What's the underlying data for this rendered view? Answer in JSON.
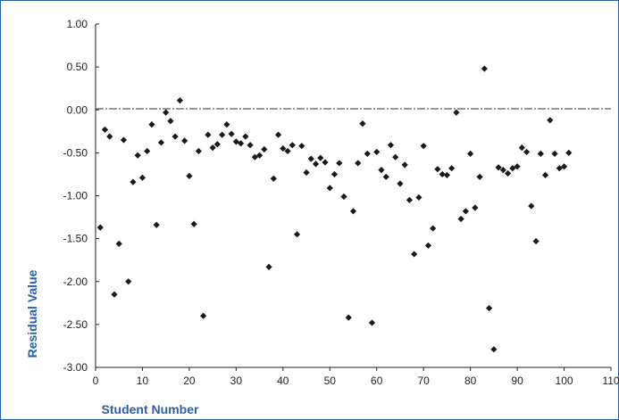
{
  "chart_data": {
    "type": "scatter",
    "title": "",
    "xlabel": "Student Number",
    "ylabel": "Residual Value",
    "xlim": [
      0,
      110
    ],
    "ylim": [
      -3.0,
      1.0
    ],
    "x_ticks": [
      "0",
      "10",
      "20",
      "30",
      "40",
      "50",
      "60",
      "70",
      "80",
      "90",
      "100",
      "110"
    ],
    "y_ticks": [
      "1.00",
      "0.50",
      "0.00",
      "-0.50",
      "-1.00",
      "-1.50",
      "-2.00",
      "-2.50",
      "-3.00"
    ],
    "reference_line_y": 0,
    "grid": false,
    "legend": "none",
    "marker_color": "#1a1a1a",
    "points": [
      [
        1,
        -1.37
      ],
      [
        2,
        -0.23
      ],
      [
        3,
        -0.31
      ],
      [
        4,
        -2.15
      ],
      [
        5,
        -1.56
      ],
      [
        6,
        -0.35
      ],
      [
        7,
        -2.0
      ],
      [
        8,
        -0.84
      ],
      [
        9,
        -0.53
      ],
      [
        10,
        -0.79
      ],
      [
        11,
        -0.48
      ],
      [
        12,
        -0.17
      ],
      [
        13,
        -1.34
      ],
      [
        14,
        -0.38
      ],
      [
        15,
        -0.03
      ],
      [
        16,
        -0.13
      ],
      [
        17,
        -0.31
      ],
      [
        18,
        0.11
      ],
      [
        19,
        -0.36
      ],
      [
        20,
        -0.77
      ],
      [
        21,
        -1.33
      ],
      [
        22,
        -0.48
      ],
      [
        23,
        -2.4
      ],
      [
        24,
        -0.29
      ],
      [
        25,
        -0.44
      ],
      [
        26,
        -0.4
      ],
      [
        27,
        -0.29
      ],
      [
        28,
        -0.17
      ],
      [
        29,
        -0.28
      ],
      [
        30,
        -0.37
      ],
      [
        31,
        -0.39
      ],
      [
        32,
        -0.31
      ],
      [
        33,
        -0.41
      ],
      [
        34,
        -0.55
      ],
      [
        35,
        -0.53
      ],
      [
        36,
        -0.46
      ],
      [
        37,
        -1.83
      ],
      [
        38,
        -0.8
      ],
      [
        39,
        -0.29
      ],
      [
        40,
        -0.45
      ],
      [
        41,
        -0.48
      ],
      [
        42,
        -0.41
      ],
      [
        43,
        -1.45
      ],
      [
        44,
        -0.42
      ],
      [
        45,
        -0.73
      ],
      [
        46,
        -0.57
      ],
      [
        47,
        -0.63
      ],
      [
        48,
        -0.56
      ],
      [
        49,
        -0.61
      ],
      [
        50,
        -0.91
      ],
      [
        51,
        -0.75
      ],
      [
        52,
        -0.62
      ],
      [
        53,
        -1.01
      ],
      [
        54,
        -2.42
      ],
      [
        55,
        -1.18
      ],
      [
        56,
        -0.62
      ],
      [
        57,
        -0.16
      ],
      [
        58,
        -0.51
      ],
      [
        59,
        -2.48
      ],
      [
        60,
        -0.49
      ],
      [
        61,
        -0.7
      ],
      [
        62,
        -0.78
      ],
      [
        63,
        -0.41
      ],
      [
        64,
        -0.55
      ],
      [
        65,
        -0.86
      ],
      [
        66,
        -0.64
      ],
      [
        67,
        -1.05
      ],
      [
        68,
        -1.68
      ],
      [
        69,
        -1.02
      ],
      [
        70,
        -0.42
      ],
      [
        71,
        -1.58
      ],
      [
        72,
        -1.38
      ],
      [
        73,
        -0.69
      ],
      [
        74,
        -0.75
      ],
      [
        75,
        -0.76
      ],
      [
        76,
        -0.68
      ],
      [
        77,
        -0.03
      ],
      [
        78,
        -1.27
      ],
      [
        79,
        -1.18
      ],
      [
        80,
        -0.51
      ],
      [
        81,
        -1.14
      ],
      [
        82,
        -0.78
      ],
      [
        83,
        0.48
      ],
      [
        84,
        -2.31
      ],
      [
        85,
        -2.79
      ],
      [
        86,
        -0.67
      ],
      [
        87,
        -0.7
      ],
      [
        88,
        -0.74
      ],
      [
        89,
        -0.68
      ],
      [
        90,
        -0.66
      ],
      [
        91,
        -0.44
      ],
      [
        92,
        -0.49
      ],
      [
        93,
        -1.12
      ],
      [
        94,
        -1.53
      ],
      [
        95,
        -0.51
      ],
      [
        96,
        -0.76
      ],
      [
        97,
        -0.12
      ],
      [
        98,
        -0.51
      ],
      [
        99,
        -0.68
      ],
      [
        100,
        -0.66
      ],
      [
        101,
        -0.5
      ]
    ]
  }
}
